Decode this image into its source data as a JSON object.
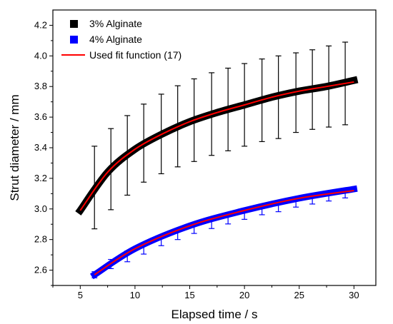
{
  "chart_data": {
    "type": "line",
    "xlabel": "Elapsed time / s",
    "ylabel": "Strut diameter / mm",
    "xlim": [
      2.5,
      32
    ],
    "ylim": [
      2.5,
      4.3
    ],
    "x_ticks": [
      5,
      10,
      15,
      20,
      25,
      30
    ],
    "y_ticks": [
      2.6,
      2.8,
      3.0,
      3.2,
      3.4,
      3.6,
      3.8,
      4.0,
      4.2
    ],
    "x_tick_labels": [
      "5",
      "10",
      "15",
      "20",
      "25",
      "30"
    ],
    "y_tick_labels": [
      "2.6",
      "2.8",
      "3.0",
      "3.2",
      "3.4",
      "3.6",
      "3.8",
      "4.0",
      "4.2"
    ],
    "grid": false,
    "legend_position": "top-left",
    "legend": [
      {
        "label": "3% Alginate",
        "marker": "square",
        "color": "#000000"
      },
      {
        "label": "4% Alginate",
        "marker": "square",
        "color": "#0000ff"
      },
      {
        "label": "Used fit function (17)",
        "marker": "line",
        "color": "#ff0000"
      }
    ],
    "series": [
      {
        "name": "3% Alginate",
        "color": "#000000",
        "x": [
          5,
          7.5,
          10,
          12.5,
          15,
          17.5,
          20,
          22.5,
          25,
          27.5,
          30
        ],
        "y": [
          2.99,
          3.24,
          3.39,
          3.49,
          3.57,
          3.63,
          3.68,
          3.73,
          3.77,
          3.8,
          3.84
        ],
        "error_x": [
          6.3,
          7.8,
          9.3,
          10.8,
          12.4,
          13.9,
          15.4,
          17.0,
          18.5,
          20.0,
          21.6,
          23.1,
          24.7,
          26.2,
          27.7,
          29.2
        ],
        "error_y": [
          3.14,
          3.26,
          3.35,
          3.43,
          3.49,
          3.54,
          3.58,
          3.62,
          3.65,
          3.68,
          3.71,
          3.73,
          3.76,
          3.78,
          3.8,
          3.82
        ],
        "error_half": [
          0.27,
          0.265,
          0.26,
          0.255,
          0.26,
          0.265,
          0.27,
          0.27,
          0.27,
          0.27,
          0.27,
          0.27,
          0.26,
          0.26,
          0.265,
          0.27
        ]
      },
      {
        "name": "4% Alginate",
        "color": "#0000ff",
        "x": [
          6.3,
          10,
          15,
          20,
          25,
          30
        ],
        "y": [
          2.57,
          2.74,
          2.89,
          2.99,
          3.07,
          3.13
        ],
        "error_x": [
          6.3,
          7.8,
          9.3,
          10.8,
          12.4,
          13.9,
          15.4,
          17.0,
          18.5,
          20.0,
          21.6,
          23.1,
          24.7,
          26.2,
          27.7,
          29.2
        ],
        "error_y": [
          2.57,
          2.64,
          2.69,
          2.74,
          2.79,
          2.83,
          2.87,
          2.9,
          2.93,
          2.96,
          2.99,
          3.01,
          3.04,
          3.06,
          3.08,
          3.1
        ],
        "error_half": [
          0.02,
          0.03,
          0.035,
          0.035,
          0.03,
          0.03,
          0.03,
          0.028,
          0.028,
          0.028,
          0.028,
          0.028,
          0.028,
          0.028,
          0.028,
          0.028
        ]
      },
      {
        "name": "Used fit function (17)",
        "color": "#ff0000",
        "fits": [
          {
            "x": [
              5,
              7.5,
              10,
              12.5,
              15,
              17.5,
              20,
              22.5,
              25,
              27.5,
              30
            ],
            "y": [
              2.99,
              3.24,
              3.39,
              3.49,
              3.57,
              3.63,
              3.68,
              3.73,
              3.77,
              3.8,
              3.83
            ]
          },
          {
            "x": [
              6.3,
              10,
              15,
              20,
              25,
              30
            ],
            "y": [
              2.57,
              2.74,
              2.89,
              2.99,
              3.07,
              3.12
            ]
          }
        ]
      }
    ]
  }
}
